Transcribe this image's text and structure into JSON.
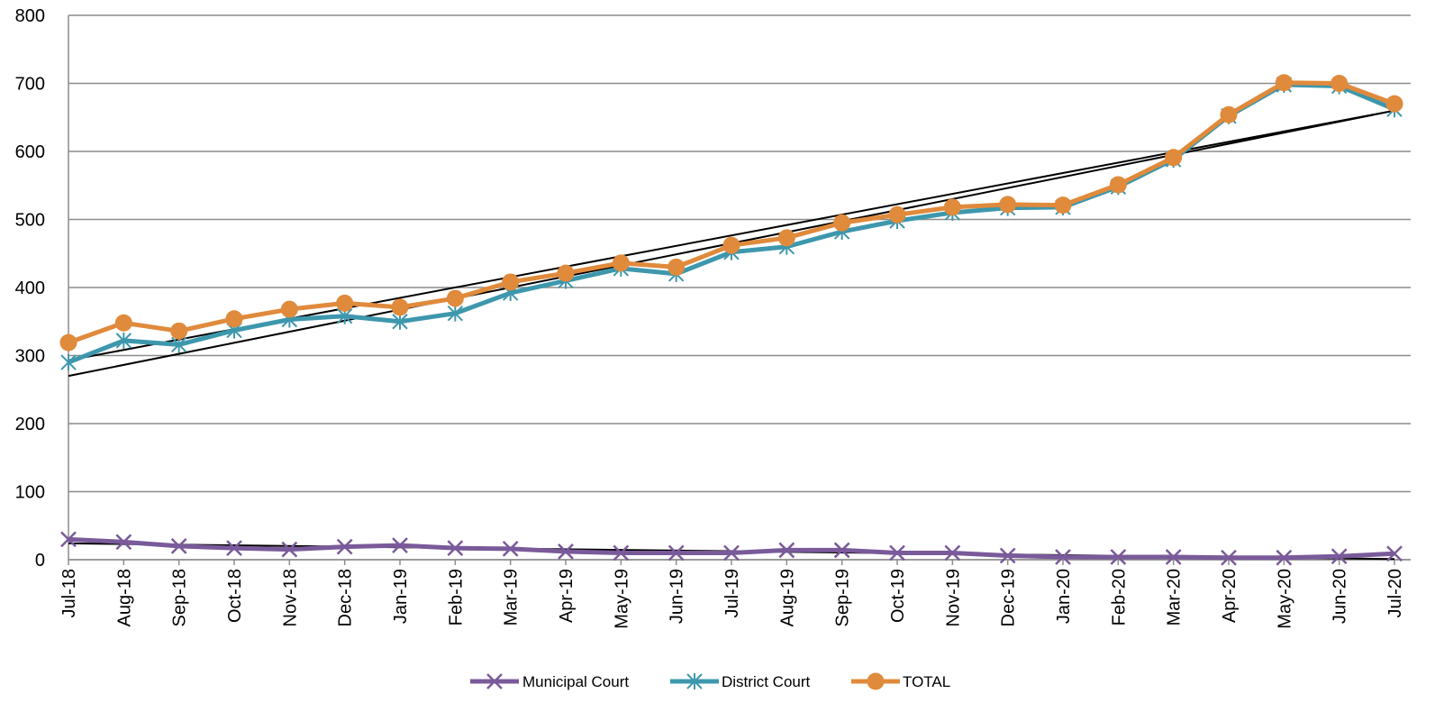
{
  "chart_data": {
    "type": "line",
    "title": "",
    "xlabel": "",
    "ylabel": "",
    "ylim": [
      0,
      800
    ],
    "yticks": [
      0,
      100,
      200,
      300,
      400,
      500,
      600,
      700,
      800
    ],
    "grid": true,
    "legend_position": "bottom",
    "categories": [
      "Jul-18",
      "Aug-18",
      "Sep-18",
      "Oct-18",
      "Nov-18",
      "Dec-18",
      "Jan-19",
      "Feb-19",
      "Mar-19",
      "Apr-19",
      "May-19",
      "Jun-19",
      "Jul-19",
      "Aug-19",
      "Sep-19",
      "Oct-19",
      "Nov-19",
      "Dec-19",
      "Jan-20",
      "Feb-20",
      "Mar-20",
      "Apr-20",
      "May-20",
      "Jun-20",
      "Jul-20"
    ],
    "series": [
      {
        "name": "Municipal Court",
        "color": "#7a5a9a",
        "marker": "x",
        "values": [
          30,
          26,
          20,
          17,
          15,
          19,
          21,
          17,
          16,
          12,
          10,
          10,
          10,
          14,
          14,
          10,
          10,
          6,
          4,
          4,
          4,
          3,
          3,
          5,
          9
        ]
      },
      {
        "name": "District Court",
        "color": "#3d97ad",
        "marker": "star",
        "values": [
          290,
          322,
          316,
          337,
          353,
          358,
          350,
          362,
          392,
          410,
          428,
          420,
          452,
          460,
          482,
          498,
          510,
          517,
          518,
          548,
          588,
          652,
          698,
          696,
          662
        ]
      },
      {
        "name": "TOTAL",
        "color": "#e08a3c",
        "marker": "circle",
        "values": [
          319,
          348,
          336,
          354,
          368,
          377,
          371,
          384,
          408,
          421,
          436,
          430,
          462,
          473,
          495,
          507,
          518,
          522,
          521,
          551,
          591,
          654,
          701,
          700,
          670
        ]
      }
    ],
    "trendlines": [
      {
        "of": "Municipal Court",
        "color": "#000000",
        "values": [
          24,
          1
        ]
      },
      {
        "of": "District Court",
        "color": "#000000",
        "values": [
          270,
          660
        ]
      },
      {
        "of": "TOTAL",
        "color": "#000000",
        "values": [
          293,
          660
        ]
      }
    ]
  }
}
